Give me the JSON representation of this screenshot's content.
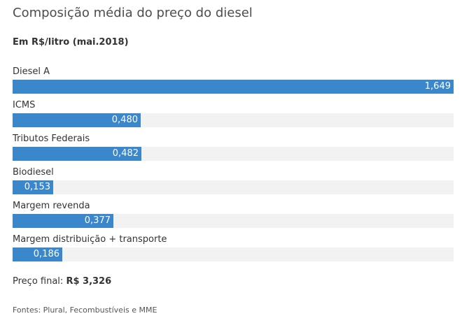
{
  "chart_data": {
    "type": "bar",
    "orientation": "horizontal",
    "title": "Composição média do preço do diesel",
    "subtitle": "Em R$/litro (mai.2018)",
    "categories": [
      "Diesel A",
      "ICMS",
      "Tributos Federais",
      "Biodiesel",
      "Margem revenda",
      "Margem distribuição + transporte"
    ],
    "values": [
      1.649,
      0.48,
      0.482,
      0.153,
      0.377,
      0.186
    ],
    "value_labels": [
      "1,649",
      "0,480",
      "0,482",
      "0,153",
      "0,377",
      "0,186"
    ],
    "xlim": [
      0,
      1.649
    ],
    "grid": false,
    "legend": "none",
    "bar_color": "#3a87cc",
    "track_color": "#f2f2f2"
  },
  "footer": {
    "final_label": "Preço final:",
    "final_value": "R$ 3,326",
    "source": "Fontes: Plural, Fecombustíveis e MME"
  }
}
